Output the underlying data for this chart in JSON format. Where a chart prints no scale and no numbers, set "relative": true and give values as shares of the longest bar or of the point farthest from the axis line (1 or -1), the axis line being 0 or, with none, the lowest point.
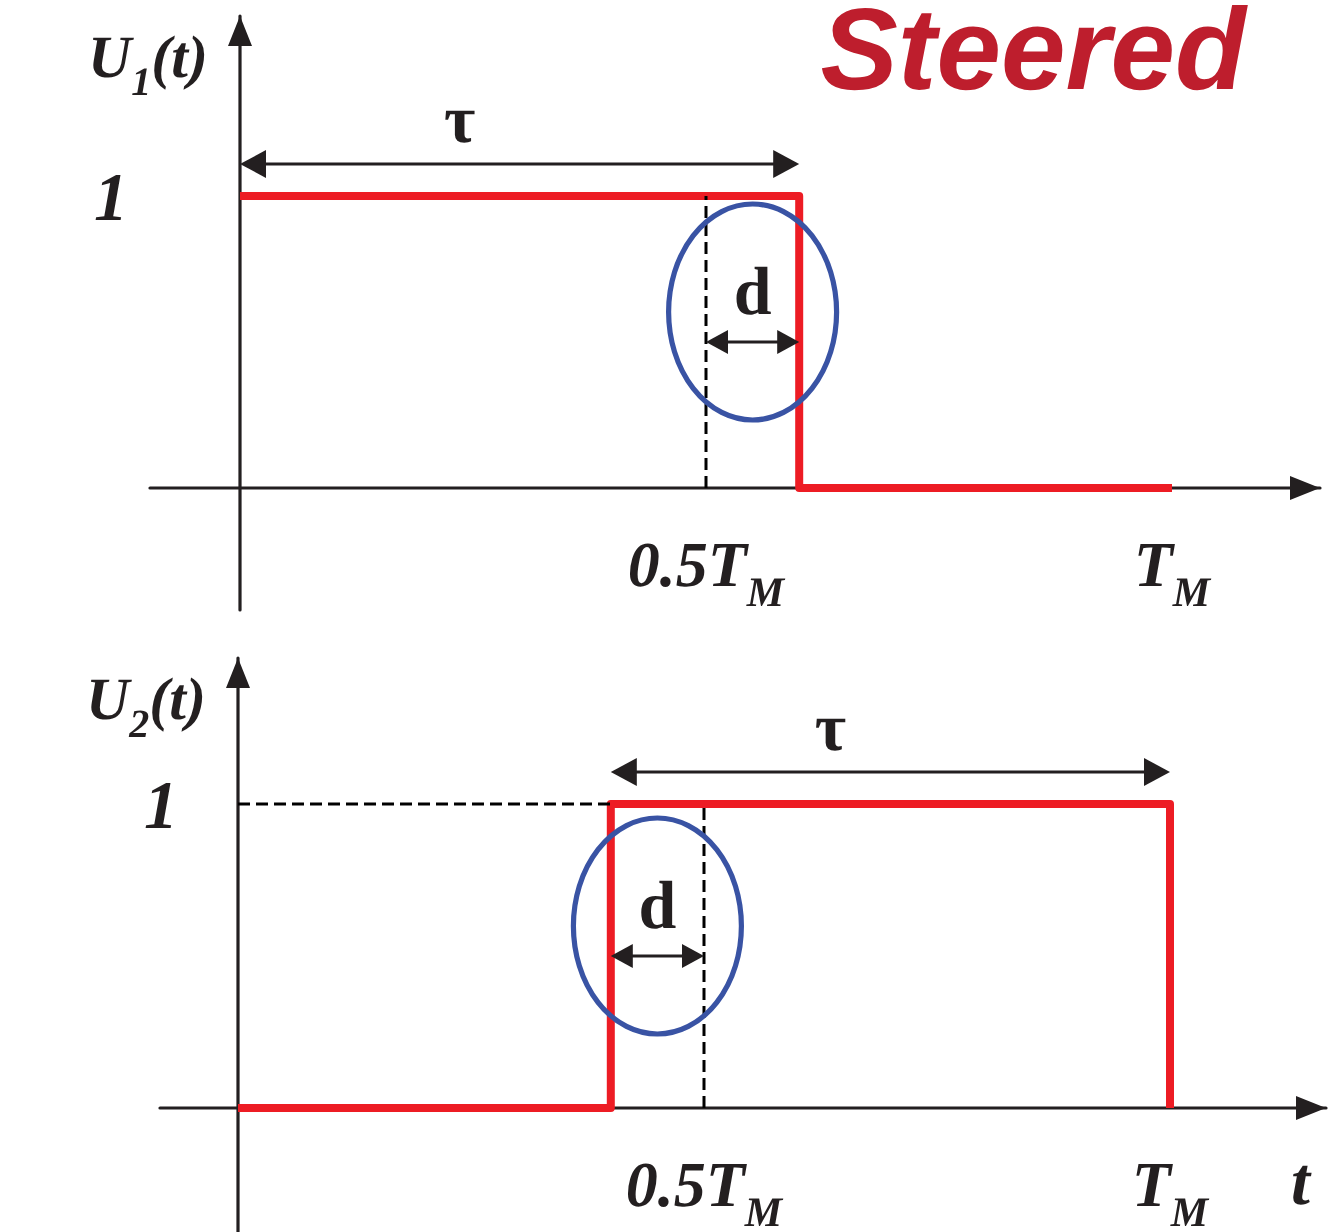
{
  "chart_data": [
    {
      "type": "step",
      "title": "Steered",
      "ylabel": "U$_{1}$(t)",
      "categories": [
        null,
        null,
        null,
        null,
        null,
        "0.5T$_{M}$",
        null,
        null,
        null,
        null,
        "T$_{M}$"
      ],
      "values": [
        1,
        1,
        1,
        1,
        1,
        1,
        0,
        0,
        0,
        0,
        0
      ],
      "color": "#ed1c24",
      "relative": true,
      "ref_lines": [
        {
          "axis": "x",
          "value": "0.5T$_{M}$",
          "color": "#000000",
          "line_style": "dashed"
        }
      ],
      "annotations": [
        "1",
        "τ",
        "d"
      ]
    },
    {
      "type": "step",
      "xlabel": "t",
      "ylabel": "U$_{2}$(t)",
      "categories": [
        null,
        null,
        null,
        null,
        null,
        "0.5T$_{M}$",
        null,
        null,
        null,
        null,
        "T$_{M}$"
      ],
      "values": [
        0,
        0,
        0,
        0,
        1,
        1,
        1,
        1,
        1,
        1,
        0
      ],
      "color": "#ed1c24",
      "relative": true,
      "ref_lines": [
        {
          "axis": "x",
          "value": "0.5T$_{M}$",
          "color": "#000000",
          "line_style": "dashed"
        },
        {
          "axis": "y",
          "value": 1,
          "color": "#000000",
          "line_style": "dashed"
        }
      ],
      "annotations": [
        "1",
        "τ",
        "d"
      ]
    }
  ]
}
